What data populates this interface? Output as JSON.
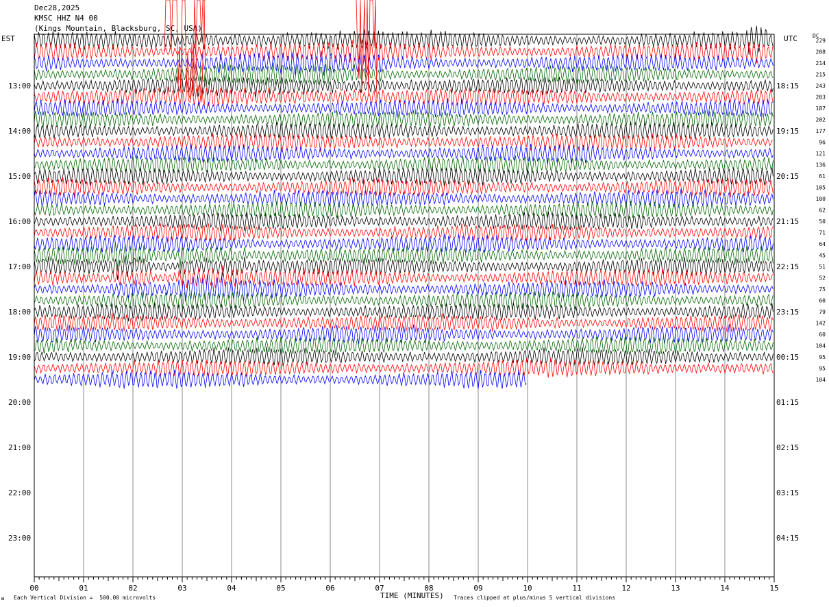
{
  "header": {
    "date": "Dec28,2025",
    "station": "KMSC HHZ N4 00",
    "location": "(Kings Mountain, Blacksburg, SC, USA)"
  },
  "left_timezone": "EST",
  "right_timezone": "UTC",
  "dc_header": "DC",
  "footer": {
    "scale_note": "Each Vertical Division =  500.00 microvolts",
    "xlabel": "TIME (MINUTES)",
    "clip_note": "Traces clipped at plus/minus 5 vertical divisions",
    "corner_mark": "ᴍ"
  },
  "colors": [
    "#000000",
    "#ff0000",
    "#0000ff",
    "#006600"
  ],
  "chart_data": {
    "type": "line",
    "title": "KMSC HHZ N4 00",
    "xlabel": "TIME (MINUTES)",
    "ylabel": "",
    "xlim": [
      0,
      15
    ],
    "x_ticks": [
      "00",
      "01",
      "02",
      "03",
      "04",
      "05",
      "06",
      "07",
      "08",
      "09",
      "10",
      "11",
      "12",
      "13",
      "14",
      "15"
    ],
    "left_hour_labels": [
      "13:00",
      "14:00",
      "15:00",
      "16:00",
      "17:00",
      "18:00",
      "19:00",
      "20:00",
      "21:00",
      "22:00",
      "23:00"
    ],
    "right_hour_labels": [
      "18:15",
      "19:15",
      "20:15",
      "21:15",
      "22:15",
      "23:15",
      "00:15",
      "01:15",
      "02:15",
      "03:15",
      "04:15"
    ],
    "row_dc_offsets": [
      229,
      208,
      214,
      215,
      243,
      203,
      187,
      202,
      177,
      96,
      121,
      136,
      61,
      105,
      100,
      62,
      50,
      71,
      64,
      45,
      51,
      52,
      75,
      60,
      79,
      142,
      60,
      104,
      95,
      95,
      104
    ],
    "trace_rows": 31,
    "last_row_end_minute": 10,
    "color_cycle": [
      "black",
      "red",
      "blue",
      "green"
    ],
    "grid": true
  }
}
